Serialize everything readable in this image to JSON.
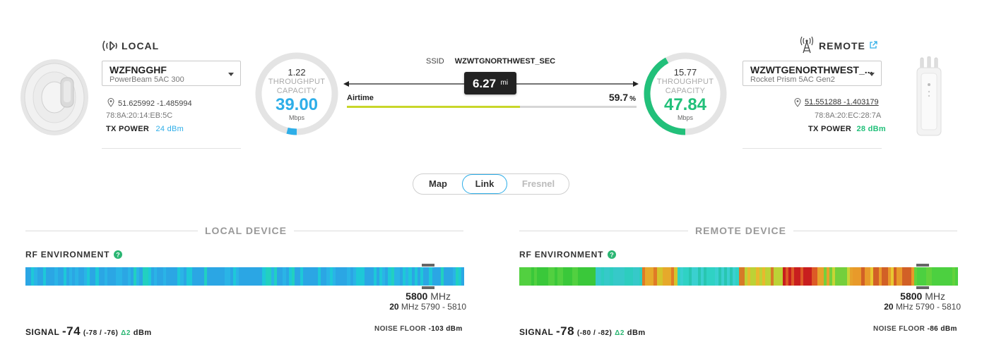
{
  "local": {
    "header": "LOCAL",
    "device_name": "WZFNGGHF",
    "device_model": "PowerBeam 5AC 300",
    "coords": "51.625992 -1.485994",
    "mac": "78:8A:20:14:EB:5C",
    "tx_power_label": "TX POWER",
    "tx_power_value": "24 dBm",
    "gauge": {
      "top_value": "1.22",
      "label1": "THROUGHPUT",
      "label2": "CAPACITY",
      "value": "39.00",
      "unit": "Mbps",
      "fill_fraction": 0.04,
      "color": "#2eaee8"
    }
  },
  "remote": {
    "header": "REMOTE",
    "device_name": "WZWTGENORTHWEST_...",
    "device_model": "Rocket Prism 5AC Gen2",
    "coords": "51.551288 -1.403179",
    "mac": "78:8A:20:EC:28:7A",
    "tx_power_label": "TX POWER",
    "tx_power_value": "28 dBm",
    "gauge": {
      "top_value": "15.77",
      "label1": "THROUGHPUT",
      "label2": "CAPACITY",
      "value": "47.84",
      "unit": "Mbps",
      "fill_fraction": 0.42,
      "color": "#22c07a"
    }
  },
  "link": {
    "ssid_label": "SSID",
    "ssid_value": "WZWTGNORTHWEST_SEC",
    "distance_value": "6.27",
    "distance_unit": "mi",
    "airtime_label": "Airtime",
    "airtime_value": "59.7",
    "airtime_unit": "%",
    "airtime_fraction": 0.597
  },
  "tabs": [
    {
      "label": "Map",
      "active": false
    },
    {
      "label": "Link",
      "active": true
    },
    {
      "label": "Fresnel",
      "active": false,
      "disabled": true
    }
  ],
  "local_device": {
    "title": "LOCAL DEVICE",
    "rf_label": "RF ENVIRONMENT",
    "freq_value": "5800",
    "freq_unit": "MHz",
    "width_value": "20",
    "width_unit": "MHz",
    "range": "5790 - 5810",
    "signal_label": "SIGNAL",
    "signal_value": "-74",
    "signal_pair": "(-78 / -76)",
    "signal_delta": "Δ2",
    "signal_unit": "dBm",
    "noise_label": "NOISE FLOOR",
    "noise_value": "-103 dBm"
  },
  "remote_device": {
    "title": "REMOTE DEVICE",
    "rf_label": "RF ENVIRONMENT",
    "freq_value": "5800",
    "freq_unit": "MHz",
    "width_value": "20",
    "width_unit": "MHz",
    "range": "5790 - 5810",
    "signal_label": "SIGNAL",
    "signal_value": "-78",
    "signal_pair": "(-80 / -82)",
    "signal_delta": "Δ2",
    "signal_unit": "dBm",
    "noise_label": "NOISE FLOOR",
    "noise_value": "-86 dBm"
  },
  "colors": {
    "accent_blue": "#2eaee8",
    "accent_green": "#22c07a",
    "airtime_bar": "#c8d62a",
    "help_icon": "#2bb673"
  }
}
